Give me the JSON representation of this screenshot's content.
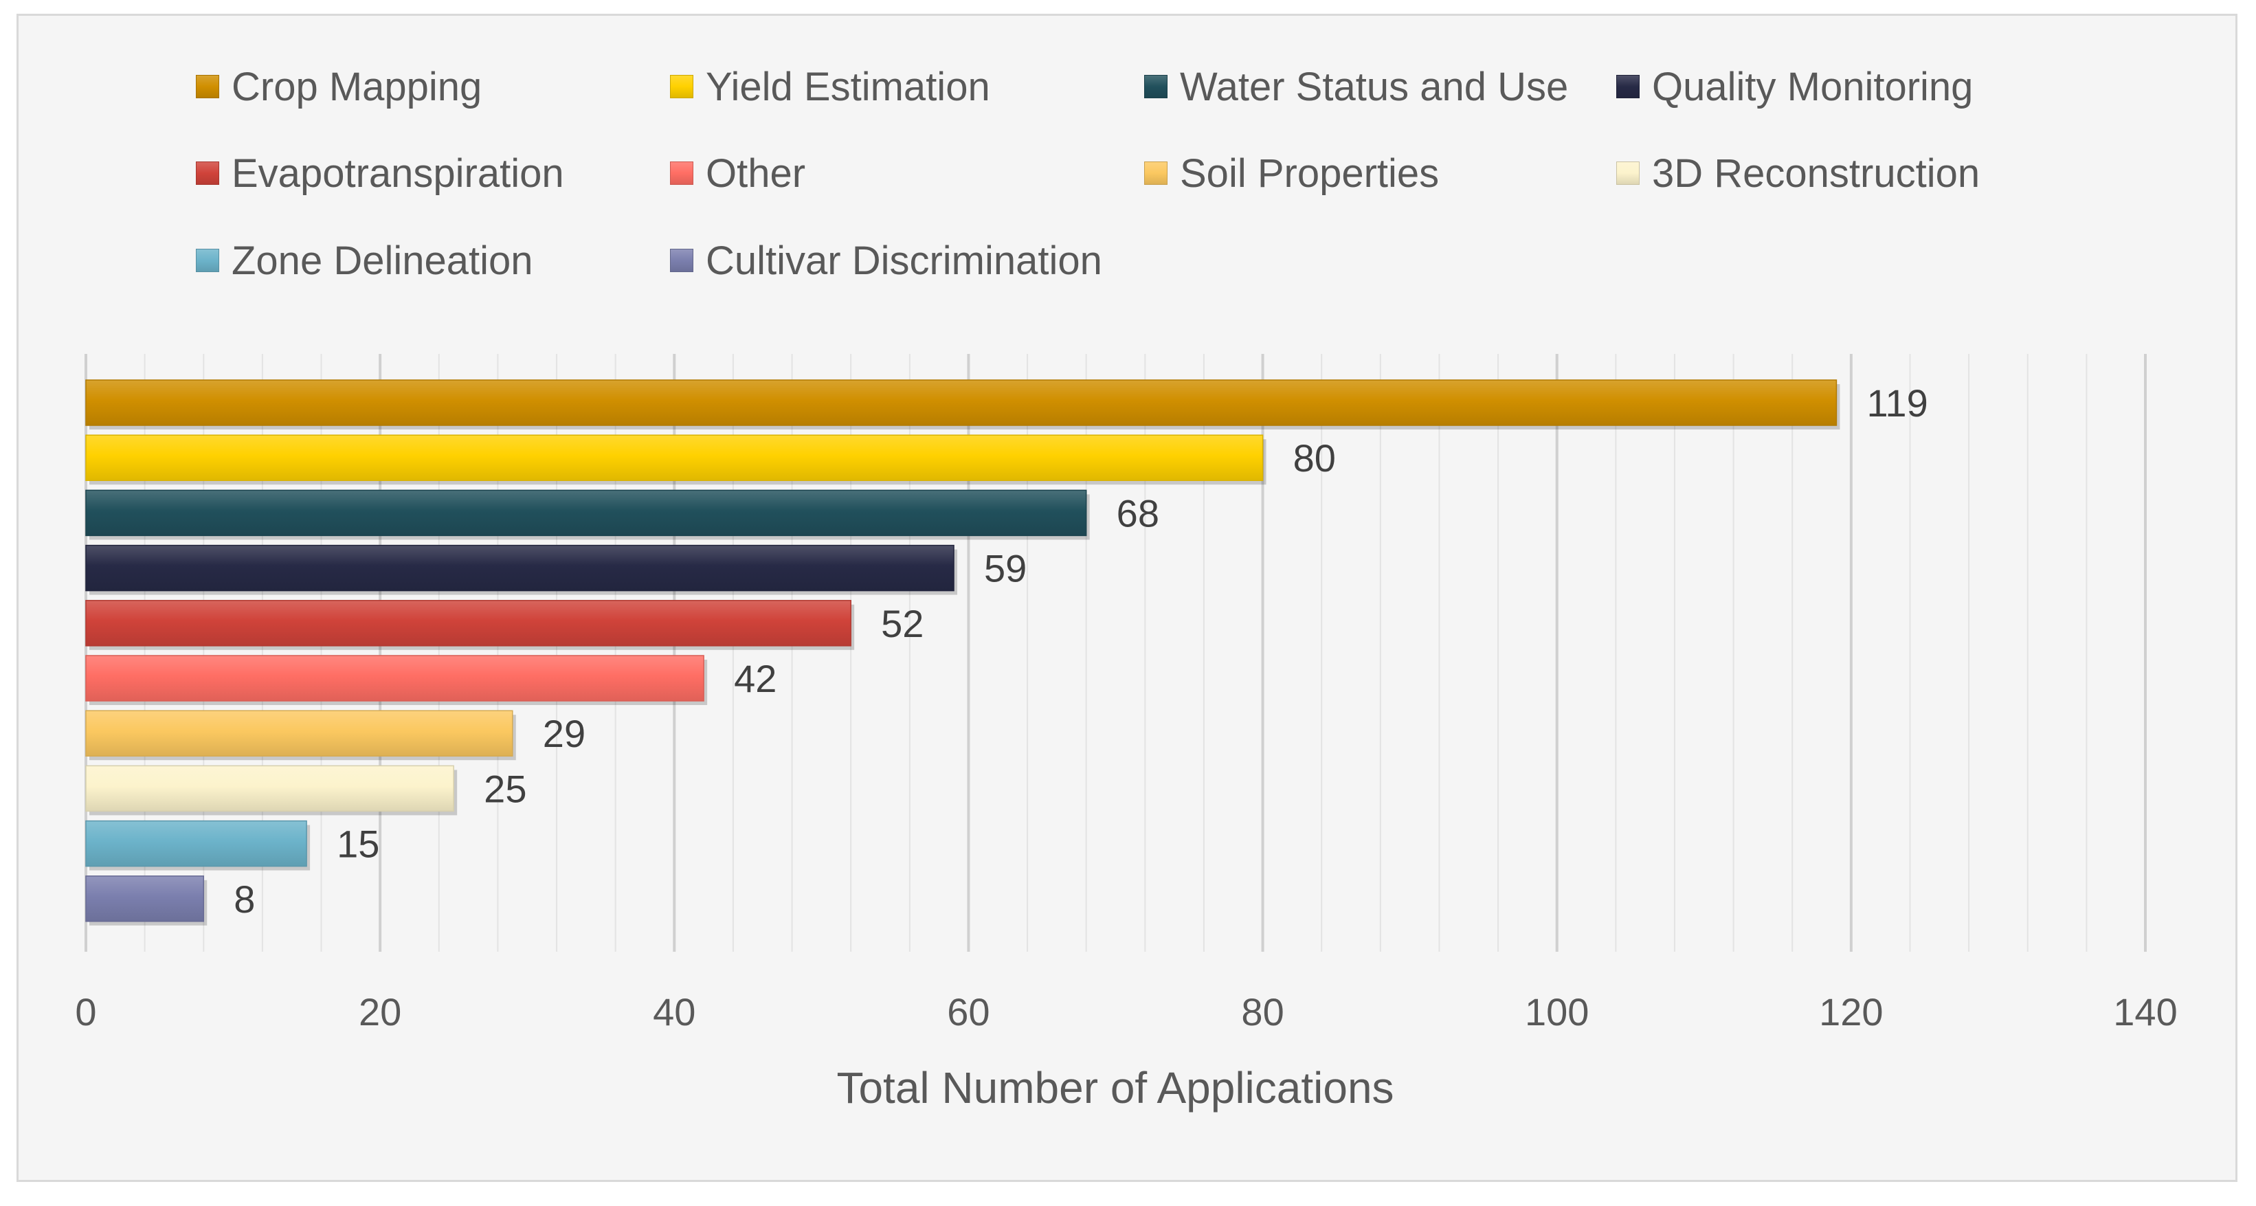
{
  "chart_data": {
    "type": "bar",
    "orientation": "horizontal",
    "title": "",
    "xlabel": "Total Number of Applications",
    "ylabel": "",
    "xlim": [
      0,
      140
    ],
    "xticks": [
      0,
      20,
      40,
      60,
      80,
      100,
      120,
      140
    ],
    "grid": true,
    "legend_position": "top",
    "categories": [
      "Crop Mapping",
      "Yield Estimation",
      "Water Status and Use",
      "Quality Monitoring",
      "Evapotranspiration",
      "Other",
      "Soil Properties",
      "3D Reconstruction",
      "Zone Delineation",
      "Cultivar Discrimination"
    ],
    "values": [
      119,
      80,
      68,
      59,
      52,
      42,
      29,
      25,
      15,
      8
    ],
    "colors": [
      "#d08f00",
      "#ffd100",
      "#21505c",
      "#272a46",
      "#d0433a",
      "#ff6e64",
      "#fbc860",
      "#fcf3cc",
      "#6cb3ca",
      "#7b7fae"
    ]
  }
}
